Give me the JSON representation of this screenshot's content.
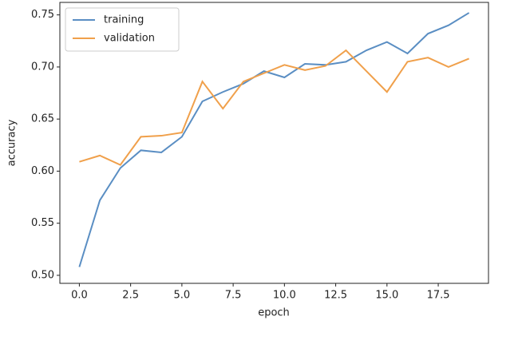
{
  "chart_data": {
    "type": "line",
    "x_label": "epoch",
    "y_label": "accuracy",
    "x": [
      0,
      1,
      2,
      3,
      4,
      5,
      6,
      7,
      8,
      9,
      10,
      11,
      12,
      13,
      14,
      15,
      16,
      17,
      18,
      19
    ],
    "series": [
      {
        "name": "training",
        "color": "#5a8ec3",
        "values": [
          0.508,
          0.572,
          0.603,
          0.62,
          0.618,
          0.633,
          0.667,
          0.676,
          0.684,
          0.696,
          0.69,
          0.703,
          0.702,
          0.705,
          0.716,
          0.724,
          0.713,
          0.732,
          0.74,
          0.752
        ]
      },
      {
        "name": "validation",
        "color": "#f0a04b",
        "values": [
          0.609,
          0.615,
          0.606,
          0.633,
          0.634,
          0.637,
          0.686,
          0.66,
          0.686,
          0.694,
          0.702,
          0.697,
          0.701,
          0.716,
          0.696,
          0.676,
          0.705,
          0.709,
          0.7,
          0.708
        ]
      }
    ],
    "xlim": [
      -0.95,
      19.95
    ],
    "ylim": [
      0.4923,
      0.762
    ],
    "xticks": [
      {
        "value": 0,
        "label": "0.0"
      },
      2.5,
      {
        "value": 5,
        "label": "5.0"
      },
      7.5,
      {
        "value": 10,
        "label": "10.0"
      },
      12.5,
      {
        "value": 15,
        "label": "15.0"
      },
      17.5
    ],
    "yticks": [
      {
        "value": 0.5,
        "label": "0.50"
      },
      {
        "value": 0.55,
        "label": "0.55"
      },
      {
        "value": 0.6,
        "label": "0.60"
      },
      {
        "value": 0.65,
        "label": "0.65"
      },
      {
        "value": 0.7,
        "label": "0.70"
      },
      {
        "value": 0.75,
        "label": "0.75"
      }
    ],
    "legend": "upper-left"
  }
}
